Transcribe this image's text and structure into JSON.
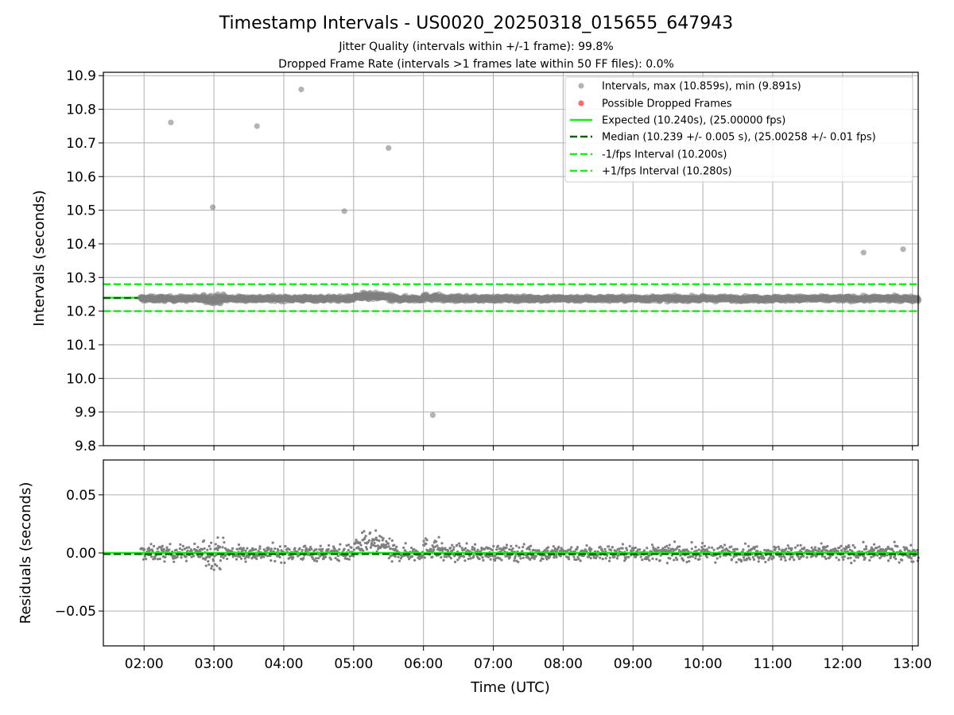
{
  "title": "Timestamp Intervals - US0020_20250318_015655_647943",
  "subtitle_1": "Jitter Quality (intervals within +/-1 frame): 99.8%",
  "subtitle_2": "Dropped Frame Rate (intervals >1 frames late within 50 FF files): 0.0%",
  "colors": {
    "points": "#808080",
    "dropped": "#ff4d4d",
    "expected": "#1aeb1a",
    "median": "#006400",
    "bounds": "#1aeb1a",
    "grid": "#b0b0b0"
  },
  "chart_data": [
    {
      "type": "scatter",
      "ylabel": "Intervals (seconds)",
      "ylim": [
        9.8,
        10.91
      ],
      "yticks": [
        "10.9",
        "10.8",
        "10.7",
        "10.6",
        "10.5",
        "10.4",
        "10.3",
        "10.2",
        "10.1",
        "10.0",
        "9.9",
        "9.8"
      ],
      "grid": true,
      "legend_position": "top-right",
      "legend": [
        "Intervals, max (10.859s), min (9.891s)",
        "Possible Dropped Frames",
        "Expected (10.240s), (25.00000 fps)",
        "Median (10.239 +/- 0.005 s), (25.00258 +/- 0.01 fps)",
        "-1/fps Interval (10.200s)",
        "+1/fps Interval (10.280s)"
      ],
      "expected": 10.24,
      "median": 10.239,
      "lower_bound": 10.2,
      "upper_bound": 10.28,
      "band_center": 10.237,
      "outliers": [
        {
          "x": "02:23",
          "y": 10.761
        },
        {
          "x": "02:59",
          "y": 10.509
        },
        {
          "x": "03:37",
          "y": 10.75
        },
        {
          "x": "04:15",
          "y": 10.859
        },
        {
          "x": "04:52",
          "y": 10.497
        },
        {
          "x": "05:30",
          "y": 10.685
        },
        {
          "x": "06:08",
          "y": 9.891
        },
        {
          "x": "12:18",
          "y": 10.374
        },
        {
          "x": "12:52",
          "y": 10.384
        }
      ]
    },
    {
      "type": "scatter",
      "xlabel": "Time (UTC)",
      "ylabel": "Residuals (seconds)",
      "ylim": [
        -0.08,
        0.08
      ],
      "yticks": [
        "0.05",
        "0.00",
        "−0.05"
      ],
      "xlim": [
        "01:25",
        "13:05"
      ],
      "xticks": [
        "02:00",
        "03:00",
        "04:00",
        "05:00",
        "06:00",
        "07:00",
        "08:00",
        "09:00",
        "10:00",
        "11:00",
        "12:00",
        "13:00"
      ],
      "grid": true,
      "expected_residual": 0.0,
      "median_residual": -0.001,
      "time_range": [
        "01:57",
        "13:05"
      ],
      "typical_spread": 0.006
    }
  ]
}
